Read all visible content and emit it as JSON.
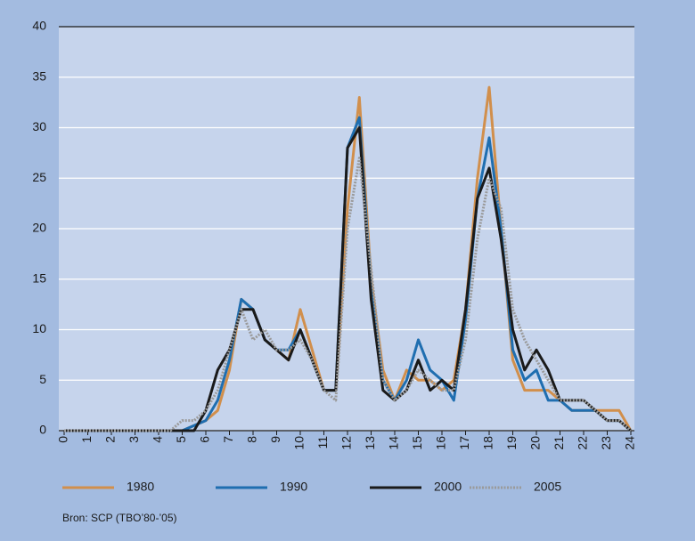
{
  "chart_data": {
    "type": "line",
    "x": [
      0,
      0.5,
      1,
      1.5,
      2,
      2.5,
      3,
      3.5,
      4,
      4.5,
      5,
      5.5,
      6,
      6.5,
      7,
      7.5,
      8,
      8.5,
      9,
      9.5,
      10,
      10.5,
      11,
      11.5,
      12,
      12.5,
      13,
      13.5,
      14,
      14.5,
      15,
      15.5,
      16,
      16.5,
      17,
      17.5,
      18,
      18.5,
      19,
      19.5,
      20,
      20.5,
      21,
      21.5,
      22,
      22.5,
      23,
      23.5,
      24
    ],
    "series": [
      {
        "name": "1980",
        "color": "#d18f4c",
        "values": [
          0,
          0,
          0,
          0,
          0,
          0,
          0,
          0,
          0,
          0,
          0,
          0.5,
          1,
          2,
          6,
          13,
          12,
          9,
          8,
          7,
          12,
          8,
          4,
          4,
          22,
          33,
          15,
          6,
          3,
          6,
          5,
          5,
          4,
          5,
          12,
          25,
          34,
          20,
          7,
          4,
          4,
          4,
          3,
          2,
          2,
          2,
          2,
          2,
          0
        ]
      },
      {
        "name": "1990",
        "color": "#1f6eb0",
        "values": [
          0,
          0,
          0,
          0,
          0,
          0,
          0,
          0,
          0,
          0,
          0,
          0.5,
          1,
          3,
          7,
          13,
          12,
          9,
          8,
          8,
          10,
          7,
          4,
          4,
          28,
          31,
          14,
          5,
          3,
          5,
          9,
          6,
          5,
          3,
          11,
          23,
          29,
          20,
          8,
          5,
          6,
          3,
          3,
          2,
          2,
          2,
          1,
          1,
          0
        ]
      },
      {
        "name": "2000",
        "color": "#1a1a1a",
        "values": [
          0,
          0,
          0,
          0,
          0,
          0,
          0,
          0,
          0,
          0,
          0,
          0,
          2,
          6,
          8,
          12,
          12,
          9,
          8,
          7,
          10,
          7,
          4,
          4,
          28,
          30,
          13,
          4,
          3,
          4,
          7,
          4,
          5,
          4,
          12,
          23,
          26,
          19,
          10,
          6,
          8,
          6,
          3,
          3,
          3,
          2,
          1,
          1,
          0
        ]
      },
      {
        "name": "2005",
        "color": "#9a9a9a",
        "dashed": true,
        "values": [
          0,
          0,
          0,
          0,
          0,
          0,
          0,
          0,
          0,
          0,
          1,
          1,
          2,
          4,
          8,
          12,
          9,
          10,
          8,
          8,
          9,
          7,
          4,
          3,
          20,
          27,
          16,
          5,
          3,
          4,
          6,
          5,
          4,
          4,
          9,
          19,
          25,
          22,
          12,
          9,
          7,
          5,
          3,
          3,
          3,
          2,
          1,
          1,
          0
        ]
      }
    ],
    "xlim": [
      0,
      24
    ],
    "xticks": [
      0,
      1,
      2,
      3,
      4,
      5,
      6,
      7,
      8,
      9,
      10,
      11,
      12,
      13,
      14,
      15,
      16,
      17,
      18,
      19,
      20,
      21,
      22,
      23,
      24
    ],
    "ylim": [
      0,
      40
    ],
    "yticks": [
      0,
      5,
      10,
      15,
      20,
      25,
      30,
      35,
      40
    ],
    "grid": true,
    "source": "Bron: SCP (TBO’80-’05)"
  }
}
